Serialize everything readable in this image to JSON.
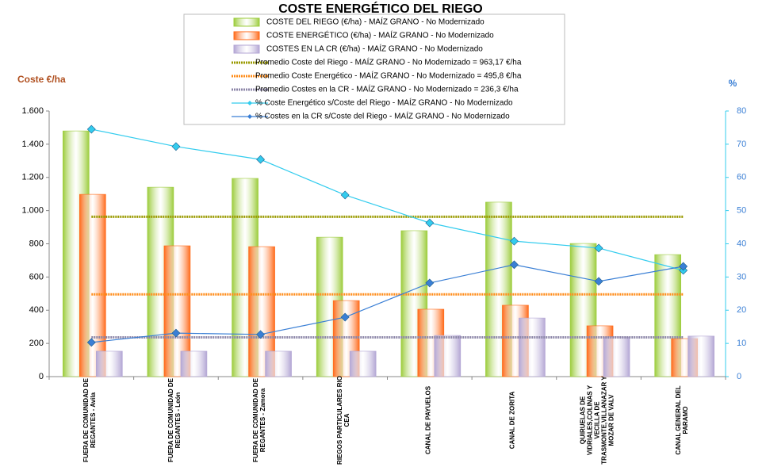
{
  "chart_data": {
    "type": "bar",
    "title": "COSTE ENERGÉTICO DEL RIEGO",
    "y_label": "Coste €/ha",
    "y2_label": "%",
    "categories": [
      "FUERA DE COMUNIDAD DE REGANTES - Avila",
      "FUERA DE COMUNIDAD DE REGANTES - León",
      "FUERA DE COMUNIDAD DE REGANTES - Zamora",
      "RIEGOS PARTICULARES RIO CEA",
      "CANAL DE PAYUELOS",
      "CANAL DE ZORITA",
      "QUIRUELAS DE VIDRIALES,COLINAS Y VECILLA DE TRASMONTE,VILLANAZAR Y MOZAR DE VALV",
      "CANAL GENERAL DEL PARAMO"
    ],
    "ylim": [
      0,
      1600
    ],
    "yticks": [
      0,
      200,
      400,
      600,
      800,
      {
        "value": 1000,
        "label": "1.000"
      },
      {
        "value": 1200,
        "label": "1.200"
      },
      {
        "value": 1400,
        "label": "1.400"
      },
      {
        "value": 1600,
        "label": "1.600"
      }
    ],
    "y2lim": [
      0,
      80
    ],
    "y2ticks": [
      0,
      10,
      20,
      30,
      40,
      50,
      60,
      70,
      80
    ],
    "series": [
      {
        "name": "COSTE DEL RIEGO (€/ha) - MAÍZ GRANO - No Modernizado",
        "type": "bar",
        "color": "#9ccc3c",
        "values": [
          1480,
          1141,
          1194,
          840,
          879,
          1051,
          802,
          735
        ]
      },
      {
        "name": "COSTE ENERGÉTICO (€/ha) - MAÍZ GRANO - No Modernizado",
        "type": "bar",
        "color": "#ff6a1a",
        "values": [
          1098,
          788,
          783,
          458,
          406,
          430,
          306,
          229
        ]
      },
      {
        "name": "COSTES EN LA CR (€/ha) - MAÍZ GRANO - No Modernizado",
        "type": "bar",
        "color": "#b3a6d4",
        "values": [
          153,
          153,
          153,
          153,
          248,
          353,
          239,
          244
        ]
      },
      {
        "name": "Promedio Coste del Riego - MAÍZ GRANO - No Modernizado = 963,17 €/ha",
        "type": "hline",
        "color": "#9a9a00",
        "value": 963.17
      },
      {
        "name": "Promedio Coste Energético - MAÍZ GRANO - No Modernizado = 495,8 €/ha",
        "type": "hline",
        "color": "#ff8c1a",
        "value": 495.8
      },
      {
        "name": "Promedio Costes en la CR - MAÍZ GRANO - No Modernizado = 236,3 €/ha",
        "type": "hline",
        "color": "#8c86a8",
        "value": 236.3
      },
      {
        "name": "% Coste Energético s/Coste del Riego - MAÍZ GRANO - No Modernizado",
        "type": "line",
        "axis": "y2",
        "color": "#33ccee",
        "values": [
          74.5,
          69.3,
          65.4,
          54.7,
          46.3,
          40.8,
          38.7,
          32.0
        ]
      },
      {
        "name": "% Costes en la CR s/Coste del Riego - MAÍZ GRANO - No Modernizado",
        "type": "line",
        "axis": "y2",
        "color": "#3a7fd5",
        "values": [
          10.3,
          13.1,
          12.7,
          17.9,
          28.2,
          33.7,
          28.7,
          33.2
        ]
      }
    ]
  }
}
